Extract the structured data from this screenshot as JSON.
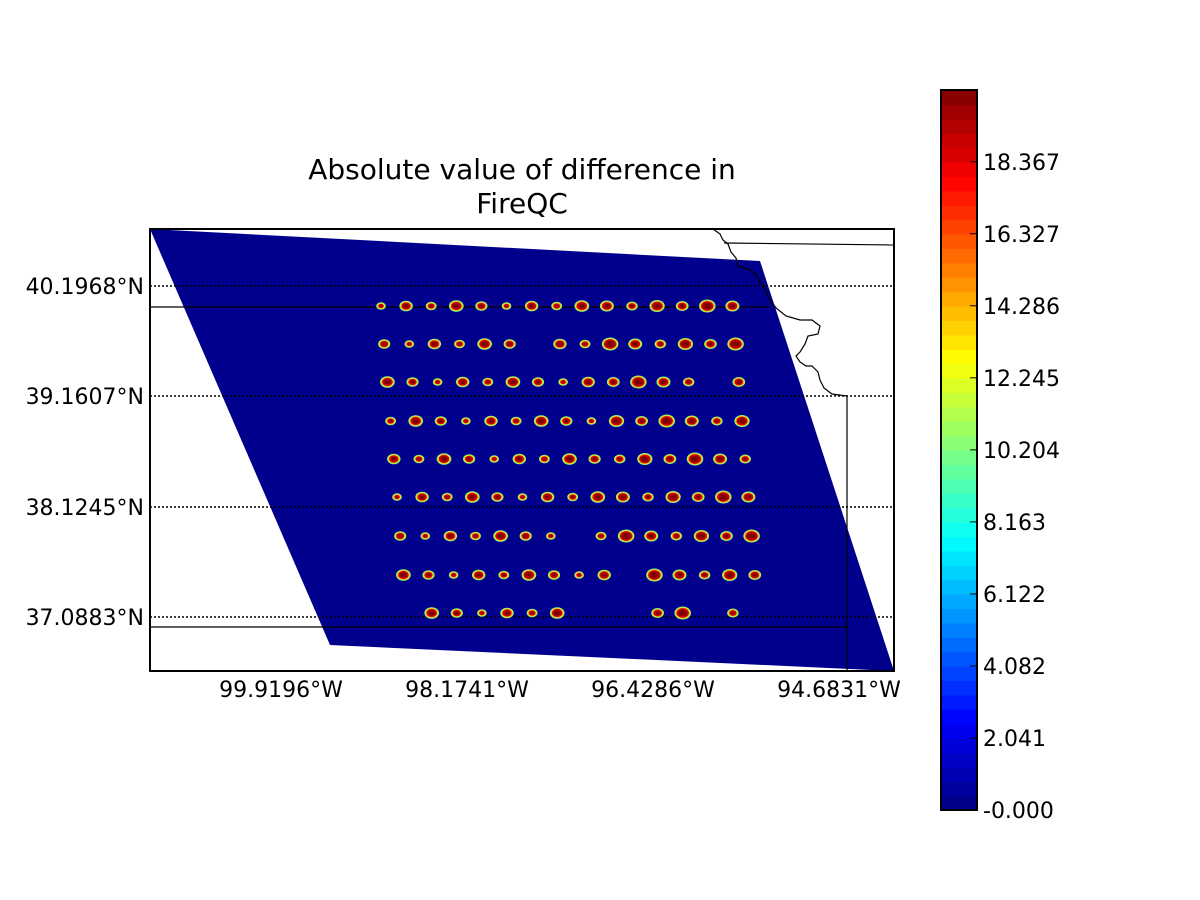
{
  "title_lines": [
    "Absolute value of difference in",
    "FireQC"
  ],
  "lat_labels": [
    "40.1968°N",
    "39.1607°N",
    "38.1245°N",
    "37.0883°N"
  ],
  "lon_labels": [
    "99.9196°W",
    "98.1741°W",
    "96.4286°W",
    "94.6831°W"
  ],
  "colorbar": {
    "tick_labels": [
      "-0.000",
      "2.041",
      "4.082",
      "6.122",
      "8.163",
      "10.204",
      "12.245",
      "14.286",
      "16.327",
      "18.367"
    ],
    "tick_values": [
      0,
      2.041,
      4.082,
      6.122,
      8.163,
      10.204,
      12.245,
      14.286,
      16.327,
      18.367
    ],
    "vmin": 0,
    "vmax": 20.4,
    "colormap": "jet"
  },
  "colors": {
    "field_background": "#00008c",
    "border_lines": "#000000"
  },
  "chart_data": {
    "type": "heatmap",
    "title": "Absolute value of difference in FireQC",
    "projection": "swath granule over Kansas region",
    "lat_gridlines": [
      40.1968,
      39.1607,
      38.1245,
      37.0883
    ],
    "lon_gridlines": [
      -99.9196,
      -98.1741,
      -96.4286,
      -94.6831
    ],
    "value_range": [
      0,
      20.4
    ],
    "background_value": 0,
    "hotspots_per_row": [
      [
        1,
        1,
        1,
        1,
        1,
        1,
        1,
        1,
        1,
        1,
        1,
        1,
        1,
        1,
        1
      ],
      [
        1,
        1,
        1,
        1,
        1,
        1,
        0,
        1,
        1,
        1,
        1,
        1,
        1,
        1,
        1
      ],
      [
        1,
        1,
        1,
        1,
        1,
        1,
        1,
        1,
        1,
        1,
        1,
        1,
        1,
        0,
        1
      ],
      [
        1,
        1,
        1,
        1,
        1,
        1,
        1,
        1,
        1,
        1,
        1,
        1,
        1,
        1,
        1
      ],
      [
        1,
        1,
        1,
        1,
        1,
        1,
        1,
        1,
        1,
        1,
        1,
        1,
        1,
        1,
        1
      ],
      [
        1,
        1,
        1,
        1,
        1,
        1,
        1,
        1,
        1,
        1,
        1,
        1,
        1,
        1,
        1
      ],
      [
        1,
        1,
        1,
        1,
        1,
        1,
        1,
        0,
        1,
        1,
        1,
        1,
        1,
        1,
        1
      ],
      [
        1,
        1,
        1,
        1,
        1,
        1,
        1,
        1,
        1,
        0,
        1,
        1,
        1,
        1,
        1
      ],
      [
        0,
        1,
        1,
        1,
        1,
        1,
        1,
        0,
        0,
        0,
        1,
        1,
        0,
        1,
        0
      ]
    ]
  }
}
